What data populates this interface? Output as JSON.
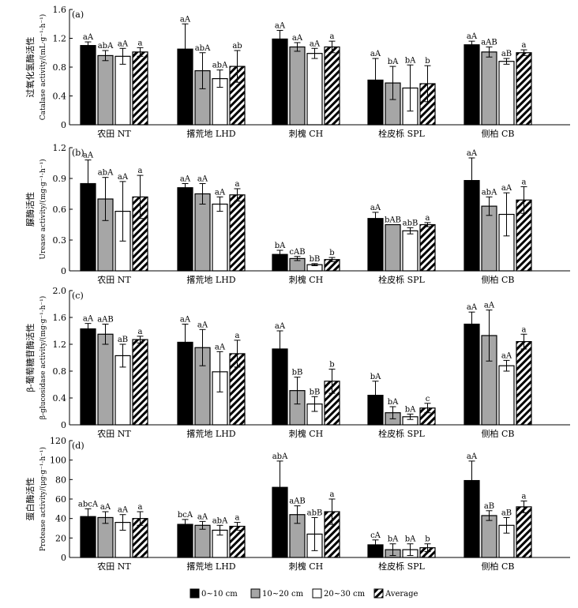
{
  "chart_data": [
    {
      "type": "bar",
      "panel_label": "(a)",
      "ylabel_cn": "过氧化氢酶活性",
      "ylabel_en": "Catalase activity/(mL·g⁻¹·h⁻¹)",
      "ylim": [
        0,
        1.6
      ],
      "yticks": [
        "0",
        "0.4",
        "0.8",
        "1.2",
        "1.6"
      ],
      "categories": [
        "农田 NT",
        "撂荒地 LHD",
        "刺槐 CH",
        "栓皮栎 SPL",
        "侧柏 CB"
      ],
      "series": [
        {
          "name": "0~10 cm",
          "values": [
            1.1,
            1.05,
            1.19,
            0.62,
            1.11
          ],
          "errors": [
            0.05,
            0.35,
            0.12,
            0.3,
            0.05
          ],
          "labels": [
            "aA",
            "aA",
            "aA",
            "aA",
            "aA"
          ]
        },
        {
          "name": "10~20 cm",
          "values": [
            0.96,
            0.75,
            1.08,
            0.58,
            1.01
          ],
          "errors": [
            0.07,
            0.25,
            0.06,
            0.23,
            0.07
          ],
          "labels": [
            "abA",
            "abA",
            "aA",
            "bA",
            "aAB"
          ]
        },
        {
          "name": "20~30 cm",
          "values": [
            0.95,
            0.64,
            0.99,
            0.51,
            0.88
          ],
          "errors": [
            0.11,
            0.12,
            0.07,
            0.32,
            0.04
          ],
          "labels": [
            "aA",
            "abA",
            "aA",
            "bA",
            "aB"
          ]
        },
        {
          "name": "Average",
          "values": [
            1.01,
            0.81,
            1.08,
            0.57,
            1.0
          ],
          "errors": [
            0.06,
            0.22,
            0.08,
            0.25,
            0.04
          ],
          "labels": [
            "a",
            "ab",
            "a",
            "b",
            "a"
          ]
        }
      ]
    },
    {
      "type": "bar",
      "panel_label": "(b)",
      "ylabel_cn": "脲酶活性",
      "ylabel_en": "Urease activity/(mg·g⁻¹·h⁻¹)",
      "ylim": [
        0,
        1.2
      ],
      "yticks": [
        "0",
        "0.3",
        "0.6",
        "0.9",
        "1.2"
      ],
      "categories": [
        "农田 NT",
        "撂荒地 LHD",
        "刺槐 CH",
        "栓皮栎 SPL",
        "侧柏 CB"
      ],
      "series": [
        {
          "name": "0~10 cm",
          "values": [
            0.85,
            0.81,
            0.16,
            0.51,
            0.88
          ],
          "errors": [
            0.23,
            0.04,
            0.04,
            0.06,
            0.22
          ],
          "labels": [
            "aA",
            "aA",
            "bA",
            "aA",
            "aA"
          ]
        },
        {
          "name": "10~20 cm",
          "values": [
            0.7,
            0.75,
            0.12,
            0.45,
            0.63
          ],
          "errors": [
            0.21,
            0.1,
            0.02,
            0.0,
            0.09
          ],
          "labels": [
            "abA",
            "aA",
            "cAB",
            "bAB",
            "abA"
          ]
        },
        {
          "name": "20~30 cm",
          "values": [
            0.58,
            0.65,
            0.06,
            0.39,
            0.55
          ],
          "errors": [
            0.29,
            0.07,
            0.01,
            0.03,
            0.21
          ],
          "labels": [
            "aA",
            "aA",
            "bB",
            "abB",
            "aA"
          ]
        },
        {
          "name": "Average",
          "values": [
            0.72,
            0.74,
            0.11,
            0.45,
            0.69
          ],
          "errors": [
            0.21,
            0.06,
            0.02,
            0.02,
            0.13
          ],
          "labels": [
            "a",
            "a",
            "b",
            "a",
            "a"
          ]
        }
      ]
    },
    {
      "type": "bar",
      "panel_label": "(c)",
      "ylabel_cn": "β-葡萄糖苷酶活性",
      "ylabel_en": "β-glucosidase activity/(mg·g⁻¹·h⁻¹)",
      "ylim": [
        0,
        2.0
      ],
      "yticks": [
        "0",
        "0.4",
        "0.8",
        "1.2",
        "1.6",
        "2.0"
      ],
      "categories": [
        "农田 NT",
        "撂荒地 LHD",
        "刺槐 CH",
        "栓皮栎 SPL",
        "侧柏 CB"
      ],
      "series": [
        {
          "name": "0~10 cm",
          "values": [
            1.43,
            1.23,
            1.13,
            0.44,
            1.5
          ],
          "errors": [
            0.08,
            0.27,
            0.27,
            0.21,
            0.18
          ],
          "labels": [
            "aA",
            "aA",
            "aA",
            "bA",
            "aA"
          ]
        },
        {
          "name": "10~20 cm",
          "values": [
            1.35,
            1.15,
            0.51,
            0.18,
            1.33
          ],
          "errors": [
            0.15,
            0.27,
            0.2,
            0.09,
            0.38
          ],
          "labels": [
            "aAB",
            "aA",
            "bB",
            "bA",
            "aA"
          ]
        },
        {
          "name": "20~30 cm",
          "values": [
            1.03,
            0.79,
            0.31,
            0.12,
            0.88
          ],
          "errors": [
            0.17,
            0.3,
            0.11,
            0.04,
            0.08
          ],
          "labels": [
            "aB",
            "aA",
            "bB",
            "bA",
            "aA"
          ]
        },
        {
          "name": "Average",
          "values": [
            1.27,
            1.06,
            0.65,
            0.25,
            1.24
          ],
          "errors": [
            0.05,
            0.2,
            0.18,
            0.07,
            0.11
          ],
          "labels": [
            "a",
            "a",
            "b",
            "c",
            "a"
          ]
        }
      ]
    },
    {
      "type": "bar",
      "panel_label": "(d)",
      "ylabel_cn": "蛋白酶活性",
      "ylabel_en": "Protease activity/(μg·g⁻¹·h⁻¹)",
      "ylim": [
        0,
        120
      ],
      "yticks": [
        "0",
        "20",
        "40",
        "60",
        "80",
        "100",
        "120"
      ],
      "categories": [
        "农田 NT",
        "撂荒地 LHD",
        "刺槐 CH",
        "栓皮栎 SPL",
        "侧柏 CB"
      ],
      "series": [
        {
          "name": "0~10 cm",
          "values": [
            42,
            34,
            72,
            13,
            79
          ],
          "errors": [
            8,
            5,
            27,
            5,
            20
          ],
          "labels": [
            "abcA",
            "bcA",
            "abA",
            "cA",
            "aA"
          ]
        },
        {
          "name": "10~20 cm",
          "values": [
            41,
            33,
            44,
            8,
            43
          ],
          "errors": [
            6,
            4,
            9,
            6,
            5
          ],
          "labels": [
            "aA",
            "aA",
            "aAB",
            "bA",
            "aB"
          ]
        },
        {
          "name": "20~30 cm",
          "values": [
            36,
            28,
            24,
            8,
            33
          ],
          "errors": [
            8,
            5,
            17,
            6,
            8
          ],
          "labels": [
            "aA",
            "abA",
            "abB",
            "bA",
            "aB"
          ]
        },
        {
          "name": "Average",
          "values": [
            40,
            32,
            47,
            10,
            52
          ],
          "errors": [
            7,
            4,
            13,
            4,
            6
          ],
          "labels": [
            "a",
            "a",
            "a",
            "b",
            "a"
          ]
        }
      ]
    }
  ],
  "legend": {
    "items": [
      {
        "label": "0~10 cm",
        "style": "black"
      },
      {
        "label": "10~20 cm",
        "style": "gray"
      },
      {
        "label": "20~30 cm",
        "style": "white"
      },
      {
        "label": "Average",
        "style": "hatch"
      }
    ]
  },
  "colors": {
    "black": "#000000",
    "gray": "#a6a6a6",
    "white": "#ffffff",
    "axis": "#000000"
  }
}
